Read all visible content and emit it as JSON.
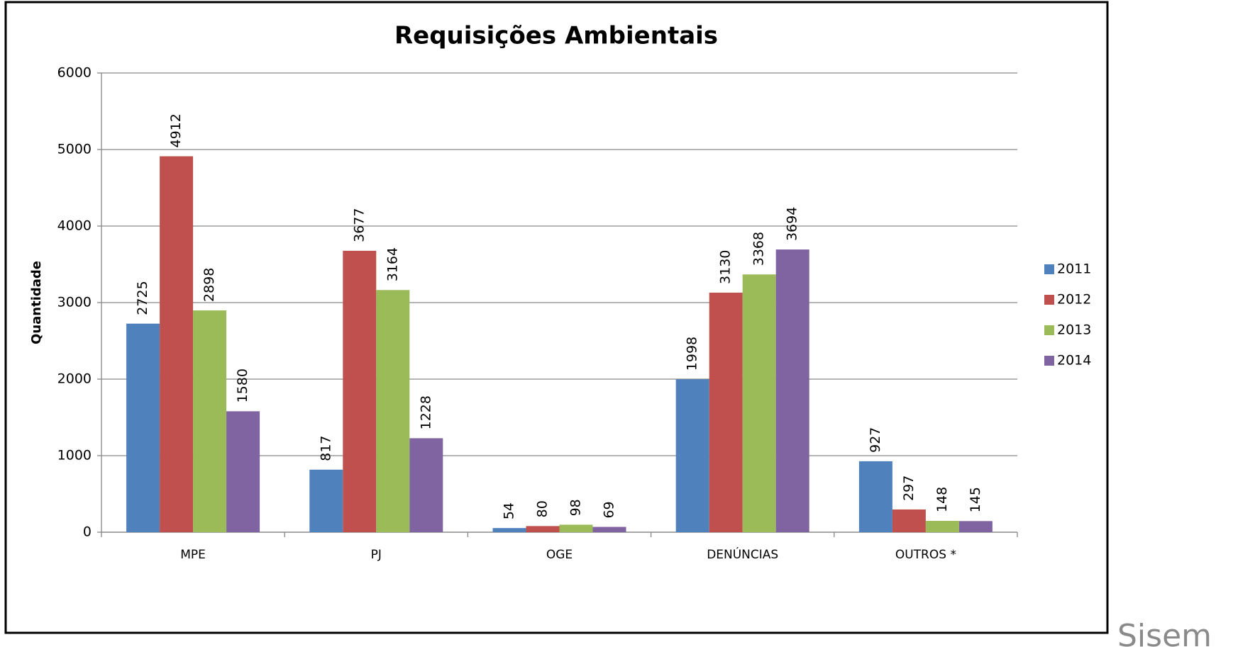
{
  "chart_data": {
    "type": "bar",
    "title": "Requisições Ambientais",
    "y_label": "Quantidade",
    "categories": [
      "MPE",
      "PJ",
      "OGE",
      "DENÚNCIAS",
      "OUTROS *"
    ],
    "series": [
      {
        "name": "2011",
        "color": "#4f81bd",
        "values": [
          2725,
          817,
          54,
          1998,
          927
        ]
      },
      {
        "name": "2012",
        "color": "#c0504d",
        "values": [
          4912,
          3677,
          80,
          3130,
          297
        ]
      },
      {
        "name": "2013",
        "color": "#9bbb59",
        "values": [
          2898,
          3164,
          98,
          3368,
          148
        ]
      },
      {
        "name": "2014",
        "color": "#8064a2",
        "values": [
          1580,
          1228,
          69,
          3694,
          145
        ]
      }
    ],
    "ylim": [
      0,
      6000
    ],
    "yticks": [
      0,
      1000,
      2000,
      3000,
      4000,
      5000,
      6000
    ],
    "grid": true,
    "legend": "right",
    "data_labels": true,
    "annotation": "Sisem"
  }
}
